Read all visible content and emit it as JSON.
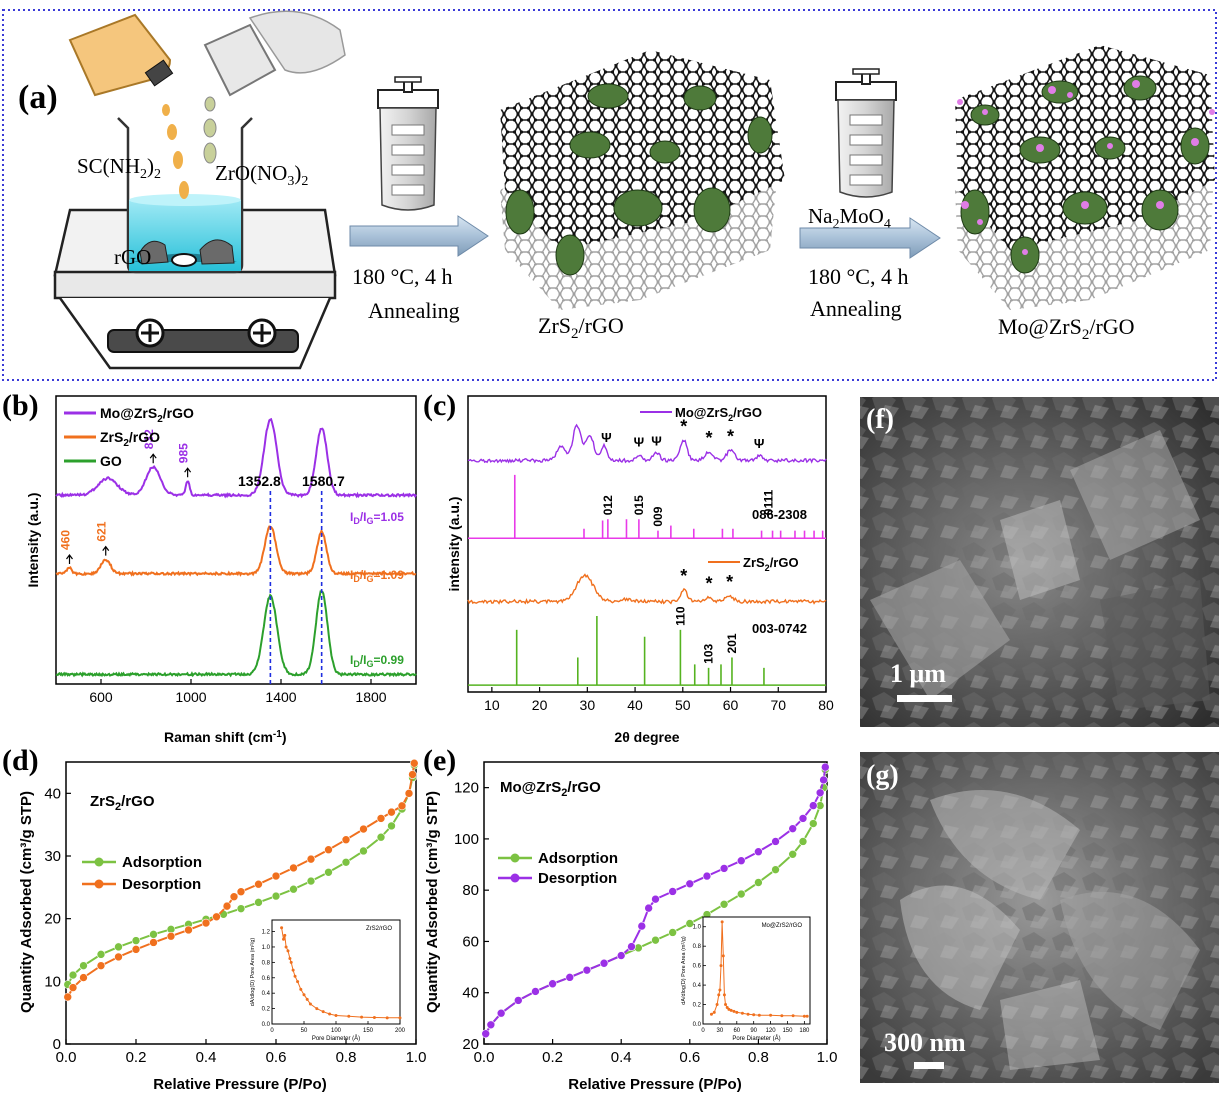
{
  "scheme": {
    "panel_label": "(a)",
    "reagent_thiourea": "SC(NH2)2",
    "reagent_zirconyl": "ZrO(NO3)2",
    "reagent_rgo": "rGO",
    "step1_condition": "180 °C, 4 h",
    "step1_process": "Annealing",
    "product1": "ZrS2/rGO",
    "reagent_molybdate": "Na2MoO4",
    "step2_condition": "180 °C, 4 h",
    "step2_process": "Annealing",
    "product2": "Mo@ZrS2/rGO",
    "colors": {
      "border": "#3a3ad8",
      "arrow": "#9fb7cf",
      "flake": "#4e7a3a",
      "mo_dot": "#e07de6"
    }
  },
  "chart_data": [
    {
      "id": "b",
      "panel_label": "(b)",
      "type": "line",
      "xlabel": "Raman shift (cm-1)",
      "ylabel": "Intensity (a.u.)",
      "xlim": [
        400,
        2000
      ],
      "xticks": [
        600,
        1000,
        1400,
        1800
      ],
      "legend": [
        "Mo@ZrS2/rGO",
        "ZrS2/rGO",
        "GO"
      ],
      "legend_position": "top-left",
      "peak_lines": [
        1352.8,
        1580.7
      ],
      "peak_labels": [
        "1352.8",
        "1580.7"
      ],
      "series": [
        {
          "name": "Mo@ZrS2/rGO",
          "color": "#9b30e6",
          "baseline": 0.66,
          "ratio_label": "ID/IG=1.05",
          "peaks": [
            [
              630,
              0.06,
              60
            ],
            [
              832,
              0.1,
              45
            ],
            [
              985,
              0.05,
              12
            ],
            [
              1352.8,
              0.27,
              40
            ],
            [
              1580.7,
              0.24,
              35
            ]
          ],
          "annotations": [
            {
              "x": 832,
              "text": "832"
            },
            {
              "x": 985,
              "text": "985"
            }
          ]
        },
        {
          "name": "ZrS2/rGO",
          "color": "#f0701e",
          "baseline": 0.38,
          "ratio_label": "ID/IG=1.09",
          "peaks": [
            [
              460,
              0.02,
              15
            ],
            [
              621,
              0.05,
              30
            ],
            [
              1352.8,
              0.17,
              35
            ],
            [
              1580.7,
              0.15,
              30
            ]
          ],
          "annotations": [
            {
              "x": 460,
              "text": "460"
            },
            {
              "x": 621,
              "text": "621"
            }
          ]
        },
        {
          "name": "GO",
          "color": "#2ca02c",
          "baseline": 0.02,
          "ratio_label": "ID/IG=0.99",
          "peaks": [
            [
              1352.8,
              0.28,
              42
            ],
            [
              1580.7,
              0.3,
              36
            ]
          ],
          "annotations": []
        }
      ]
    },
    {
      "id": "c",
      "panel_label": "(c)",
      "type": "line",
      "xlabel": "2θ degree",
      "ylabel": "intensity (a.u.)",
      "xlim": [
        5,
        80
      ],
      "xticks": [
        10,
        20,
        30,
        40,
        50,
        60,
        70,
        80
      ],
      "series": [
        {
          "name": "Mo@ZrS2/rGO",
          "color": "#9b30e6",
          "baseline": 0.79,
          "peaks": [
            [
              24.5,
              0.05,
              1.2
            ],
            [
              27.8,
              0.12,
              1.2
            ],
            [
              30.5,
              0.09,
              1.2
            ],
            [
              33.5,
              0.05,
              0.9
            ],
            [
              40.8,
              0.02,
              1
            ],
            [
              44.5,
              0.025,
              1
            ],
            [
              50.2,
              0.07,
              1.0
            ],
            [
              55.5,
              0.03,
              1.2
            ],
            [
              60.0,
              0.035,
              1.2
            ],
            [
              66,
              0.015,
              1
            ]
          ]
        },
        {
          "name": "ZrS2/rGO",
          "color": "#f0701e",
          "baseline": 0.3,
          "peaks": [
            [
              29.5,
              0.09,
              2.5
            ],
            [
              38,
              0.01,
              2
            ],
            [
              50.2,
              0.04,
              1.0
            ],
            [
              55.5,
              0.015,
              1.2
            ],
            [
              59.8,
              0.02,
              1.2
            ]
          ]
        }
      ],
      "reference_patterns": [
        {
          "name": "086-2308",
          "color": "#e83ae8",
          "base": 0.52,
          "scale": 0.22,
          "sticks": [
            [
              14.8,
              1.0
            ],
            [
              29.3,
              0.15
            ],
            [
              33.2,
              0.28
            ],
            [
              34.3,
              0.3
            ],
            [
              38.2,
              0.3
            ],
            [
              40.8,
              0.3
            ],
            [
              44.8,
              0.12
            ],
            [
              47.5,
              0.2
            ],
            [
              52.3,
              0.15
            ],
            [
              58.3,
              0.15
            ],
            [
              60.5,
              0.15
            ],
            [
              66.5,
              0.12
            ],
            [
              68.8,
              0.12
            ],
            [
              70.5,
              0.12
            ],
            [
              73.5,
              0.12
            ],
            [
              75.5,
              0.12
            ],
            [
              77.5,
              0.12
            ],
            [
              79.3,
              0.12
            ]
          ],
          "labels": [
            {
              "x": 34.3,
              "text": "012"
            },
            {
              "x": 40.8,
              "text": "015"
            },
            {
              "x": 44.8,
              "text": "009"
            },
            {
              "x": 68.0,
              "text": "0111"
            }
          ]
        },
        {
          "name": "003-0742",
          "color": "#55b320",
          "base": 0.01,
          "scale": 0.24,
          "sticks": [
            [
              15.2,
              0.8
            ],
            [
              28.0,
              0.4
            ],
            [
              32.0,
              1.0
            ],
            [
              42.0,
              0.7
            ],
            [
              49.5,
              0.8
            ],
            [
              52.5,
              0.3
            ],
            [
              55.4,
              0.25
            ],
            [
              58.0,
              0.3
            ],
            [
              60.3,
              0.4
            ],
            [
              67.0,
              0.25
            ]
          ],
          "labels": [
            {
              "x": 49.5,
              "text": "110"
            },
            {
              "x": 55.4,
              "text": "103"
            },
            {
              "x": 60.3,
              "text": "201"
            }
          ]
        }
      ],
      "markers": [
        {
          "series": "Mo@ZrS2/rGO",
          "x": 34.0,
          "symbol": "Ψ"
        },
        {
          "series": "Mo@ZrS2/rGO",
          "x": 40.8,
          "symbol": "Ψ"
        },
        {
          "series": "Mo@ZrS2/rGO",
          "x": 44.5,
          "symbol": "Ψ"
        },
        {
          "series": "Mo@ZrS2/rGO",
          "x": 50.2,
          "symbol": "*"
        },
        {
          "series": "Mo@ZrS2/rGO",
          "x": 55.5,
          "symbol": "*"
        },
        {
          "series": "Mo@ZrS2/rGO",
          "x": 60.0,
          "symbol": "*"
        },
        {
          "series": "Mo@ZrS2/rGO",
          "x": 66.0,
          "symbol": "Ψ"
        },
        {
          "series": "ZrS2/rGO",
          "x": 50.2,
          "symbol": "*"
        },
        {
          "series": "ZrS2/rGO",
          "x": 55.5,
          "symbol": "*"
        },
        {
          "series": "ZrS2/rGO",
          "x": 59.8,
          "symbol": "*"
        }
      ]
    },
    {
      "id": "d",
      "panel_label": "(d)",
      "type": "line",
      "title": "ZrS2/rGO",
      "xlabel": "Relative Pressure (P/Po)",
      "ylabel": "Quantity Adsorbed (cm³/g STP)",
      "xlim": [
        0,
        1.0
      ],
      "ylim": [
        0,
        45
      ],
      "xticks": [
        0.0,
        0.2,
        0.4,
        0.6,
        0.8,
        1.0
      ],
      "yticks": [
        0,
        10,
        20,
        30,
        40
      ],
      "legend_position": "center-left",
      "series": [
        {
          "name": "Adsorption",
          "color": "#7cc242",
          "x": [
            0.005,
            0.02,
            0.05,
            0.1,
            0.15,
            0.2,
            0.25,
            0.3,
            0.35,
            0.4,
            0.45,
            0.5,
            0.55,
            0.6,
            0.65,
            0.7,
            0.75,
            0.8,
            0.85,
            0.9,
            0.93,
            0.96,
            0.98,
            0.99,
            0.995
          ],
          "y": [
            9.5,
            11.0,
            12.5,
            14.3,
            15.5,
            16.5,
            17.5,
            18.3,
            19.1,
            19.9,
            20.7,
            21.6,
            22.6,
            23.6,
            24.7,
            26.0,
            27.4,
            29.0,
            30.8,
            33.0,
            34.8,
            37.5,
            40.0,
            42.5,
            44.5
          ]
        },
        {
          "name": "Desorption",
          "color": "#f0701e",
          "x": [
            0.005,
            0.02,
            0.05,
            0.1,
            0.15,
            0.2,
            0.25,
            0.3,
            0.35,
            0.4,
            0.43,
            0.46,
            0.48,
            0.5,
            0.55,
            0.6,
            0.65,
            0.7,
            0.75,
            0.8,
            0.85,
            0.9,
            0.93,
            0.96,
            0.98,
            0.99,
            0.995
          ],
          "y": [
            7.5,
            9.0,
            10.6,
            12.5,
            13.9,
            15.1,
            16.2,
            17.2,
            18.2,
            19.3,
            20.3,
            22.0,
            23.5,
            24.3,
            25.5,
            26.8,
            28.1,
            29.5,
            31.0,
            32.6,
            34.3,
            36.0,
            37.0,
            38.0,
            40.0,
            43.0,
            44.8
          ]
        }
      ],
      "inset": {
        "title": "ZrS2/rGO",
        "xlabel": "Pore Diameter (Å)",
        "ylabel": "dA/dlog(D) Pore Area (m²/g)",
        "xlim": [
          0,
          200
        ],
        "ylim": [
          0,
          1.35
        ],
        "xticks": [
          0,
          50,
          100,
          150,
          200
        ],
        "yticks": [
          0.0,
          0.2,
          0.4,
          0.6,
          0.8,
          1.0,
          1.2
        ],
        "color": "#f0701e",
        "x": [
          15,
          18,
          20,
          22,
          25,
          28,
          30,
          33,
          36,
          40,
          45,
          50,
          55,
          60,
          70,
          80,
          90,
          100,
          120,
          140,
          160,
          180,
          200
        ],
        "y": [
          1.25,
          1.1,
          1.15,
          1.0,
          0.95,
          0.85,
          0.8,
          0.7,
          0.62,
          0.55,
          0.45,
          0.38,
          0.32,
          0.26,
          0.2,
          0.16,
          0.13,
          0.11,
          0.1,
          0.09,
          0.085,
          0.08,
          0.08
        ]
      }
    },
    {
      "id": "e",
      "panel_label": "(e)",
      "type": "line",
      "title": "Mo@ZrS2/rGO",
      "xlabel": "Relative Pressure (P/Po)",
      "ylabel": "Quantity Adsorbed (cm³/g STP)",
      "xlim": [
        0,
        1.0
      ],
      "ylim": [
        20,
        130
      ],
      "xticks": [
        0.0,
        0.2,
        0.4,
        0.6,
        0.8,
        1.0
      ],
      "yticks": [
        20,
        40,
        60,
        80,
        100,
        120
      ],
      "legend_position": "center-left",
      "series": [
        {
          "name": "Adsorption",
          "color": "#7cc242",
          "x": [
            0.005,
            0.02,
            0.05,
            0.1,
            0.15,
            0.2,
            0.25,
            0.3,
            0.35,
            0.4,
            0.45,
            0.5,
            0.55,
            0.6,
            0.65,
            0.7,
            0.75,
            0.8,
            0.85,
            0.9,
            0.93,
            0.96,
            0.98,
            0.99,
            0.995
          ],
          "y": [
            24,
            27.5,
            32,
            37,
            40.5,
            43.5,
            46,
            48.8,
            51.5,
            54.5,
            57.5,
            60.5,
            63.5,
            67,
            70.5,
            74.5,
            78.5,
            83,
            88,
            94,
            99,
            106,
            113,
            120,
            127
          ]
        },
        {
          "name": "Desorption",
          "color": "#9b30e6",
          "x": [
            0.005,
            0.02,
            0.05,
            0.1,
            0.15,
            0.2,
            0.25,
            0.3,
            0.35,
            0.4,
            0.43,
            0.46,
            0.48,
            0.5,
            0.55,
            0.6,
            0.65,
            0.7,
            0.75,
            0.8,
            0.85,
            0.9,
            0.93,
            0.96,
            0.98,
            0.99,
            0.995
          ],
          "y": [
            24,
            27.5,
            32,
            37,
            40.5,
            43.5,
            46,
            48.8,
            51.5,
            54.5,
            58,
            66,
            73,
            76.5,
            79.5,
            82.5,
            85.5,
            88.5,
            91.5,
            95,
            99,
            104,
            108,
            113,
            118,
            123,
            128
          ]
        }
      ],
      "inset": {
        "title": "Mo@ZrS2/rGO",
        "xlabel": "Pore Diameter (Å)",
        "ylabel": "dA/dlog(D) Pore Area (m²/g)",
        "xlim": [
          0,
          190
        ],
        "ylim": [
          0,
          1.1
        ],
        "xticks": [
          0,
          30,
          60,
          90,
          120,
          150,
          180
        ],
        "yticks": [
          0.0,
          0.2,
          0.4,
          0.6,
          0.8,
          1.0
        ],
        "color": "#f0701e",
        "x": [
          15,
          20,
          25,
          28,
          30,
          32,
          34,
          36,
          38,
          40,
          43,
          46,
          50,
          55,
          60,
          70,
          80,
          90,
          100,
          120,
          140,
          160,
          180,
          185
        ],
        "y": [
          0.1,
          0.12,
          0.2,
          0.3,
          0.35,
          0.6,
          1.05,
          0.7,
          0.3,
          0.2,
          0.17,
          0.15,
          0.14,
          0.13,
          0.12,
          0.11,
          0.1,
          0.095,
          0.09,
          0.09,
          0.085,
          0.085,
          0.08,
          0.08
        ]
      }
    }
  ],
  "sem_images": [
    {
      "panel_label": "(f)",
      "scale_bar": "1 μm"
    },
    {
      "panel_label": "(g)",
      "scale_bar": "300 nm"
    }
  ]
}
